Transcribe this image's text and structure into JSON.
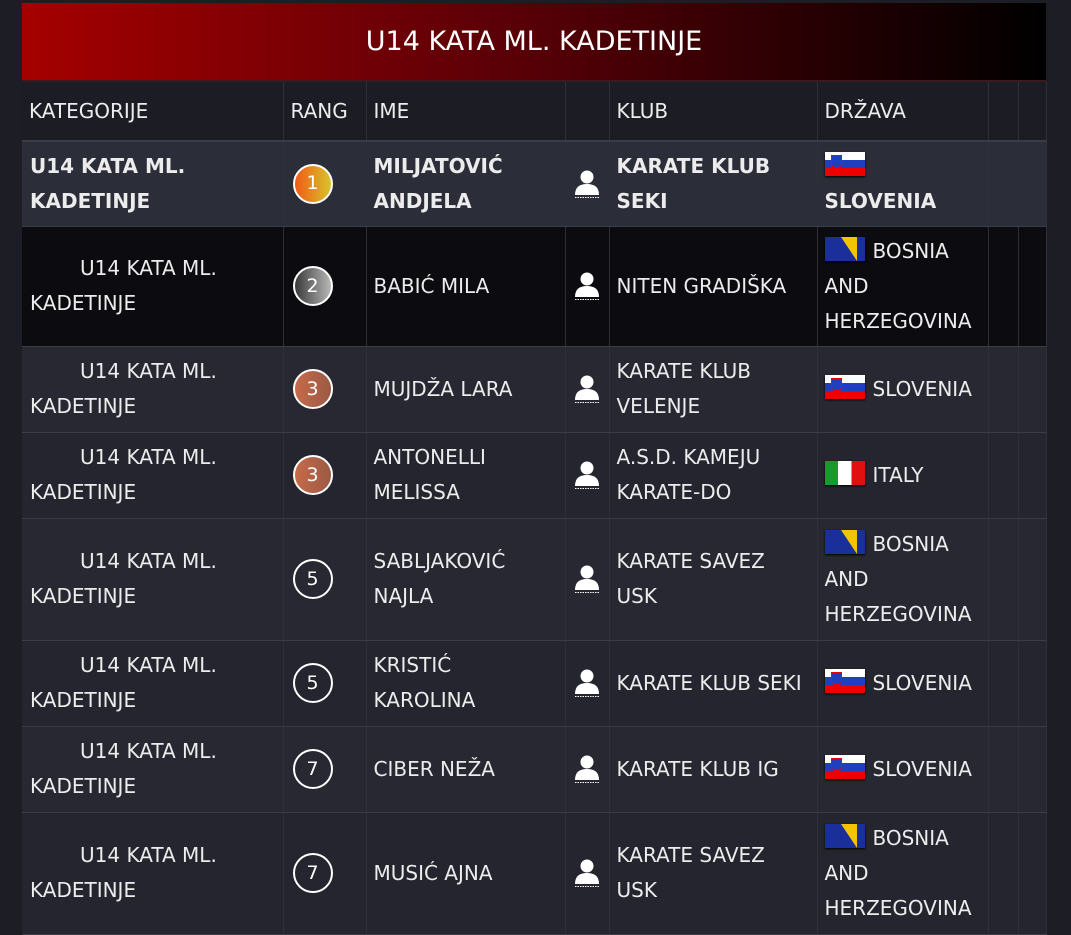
{
  "title": "U14 KATA ML. KADETINJE",
  "columns": {
    "category": "KATEGORIJE",
    "rank": "RANG",
    "name": "IME",
    "club": "KLUB",
    "country": "DRŽAVA"
  },
  "rows": [
    {
      "category": "U14 KATA ML. KADETINJE",
      "rank": "1",
      "medal": "gold",
      "name": "MILJATOVIĆ ANDJELA",
      "club": "KARATE KLUB SEKI",
      "country": "SLOVENIA",
      "flag": "si",
      "icon": "person-icon"
    },
    {
      "category": "U14 KATA ML. KADETINJE",
      "rank": "2",
      "medal": "silver",
      "name": "BABIĆ MILA",
      "club": "NITEN GRADIŠKA",
      "country": "BOSNIA AND HERZEGOVINA",
      "flag": "ba",
      "icon": "person-icon"
    },
    {
      "category": "U14 KATA ML. KADETINJE",
      "rank": "3",
      "medal": "bronze",
      "name": "MUJDŽA LARA",
      "club": "KARATE KLUB VELENJE",
      "country": "SLOVENIA",
      "flag": "si",
      "icon": "person-icon"
    },
    {
      "category": "U14 KATA ML. KADETINJE",
      "rank": "3",
      "medal": "bronze",
      "name": "ANTONELLI MELISSA",
      "club": "A.S.D. KAMEJU KARATE-DO",
      "country": "ITALY",
      "flag": "it",
      "icon": "person-icon"
    },
    {
      "category": "U14 KATA ML. KADETINJE",
      "rank": "5",
      "medal": "none",
      "name": "SABLJAKOVIĆ NAJLA",
      "club": "KARATE SAVEZ USK",
      "country": "BOSNIA AND HERZEGOVINA",
      "flag": "ba",
      "icon": "person-icon"
    },
    {
      "category": "U14 KATA ML. KADETINJE",
      "rank": "5",
      "medal": "none",
      "name": "KRISTIĆ KAROLINA",
      "club": "KARATE KLUB SEKI",
      "country": "SLOVENIA",
      "flag": "si",
      "icon": "person-icon"
    },
    {
      "category": "U14 KATA ML. KADETINJE",
      "rank": "7",
      "medal": "none",
      "name": "CIBER NEŽA",
      "club": "KARATE KLUB IG",
      "country": "SLOVENIA",
      "flag": "si",
      "icon": "person-icon"
    },
    {
      "category": "U14 KATA ML. KADETINJE",
      "rank": "7",
      "medal": "none",
      "name": "MUSIĆ AJNA",
      "club": "KARATE SAVEZ USK",
      "country": "BOSNIA AND HERZEGOVINA",
      "flag": "ba",
      "icon": "person-icon"
    }
  ],
  "colors": {
    "banner_start": "#a50000",
    "banner_end": "#000000",
    "background": "#1d1e25",
    "gold": "#f05a16",
    "silver": "#8a8a8a",
    "bronze": "#b8644a"
  }
}
